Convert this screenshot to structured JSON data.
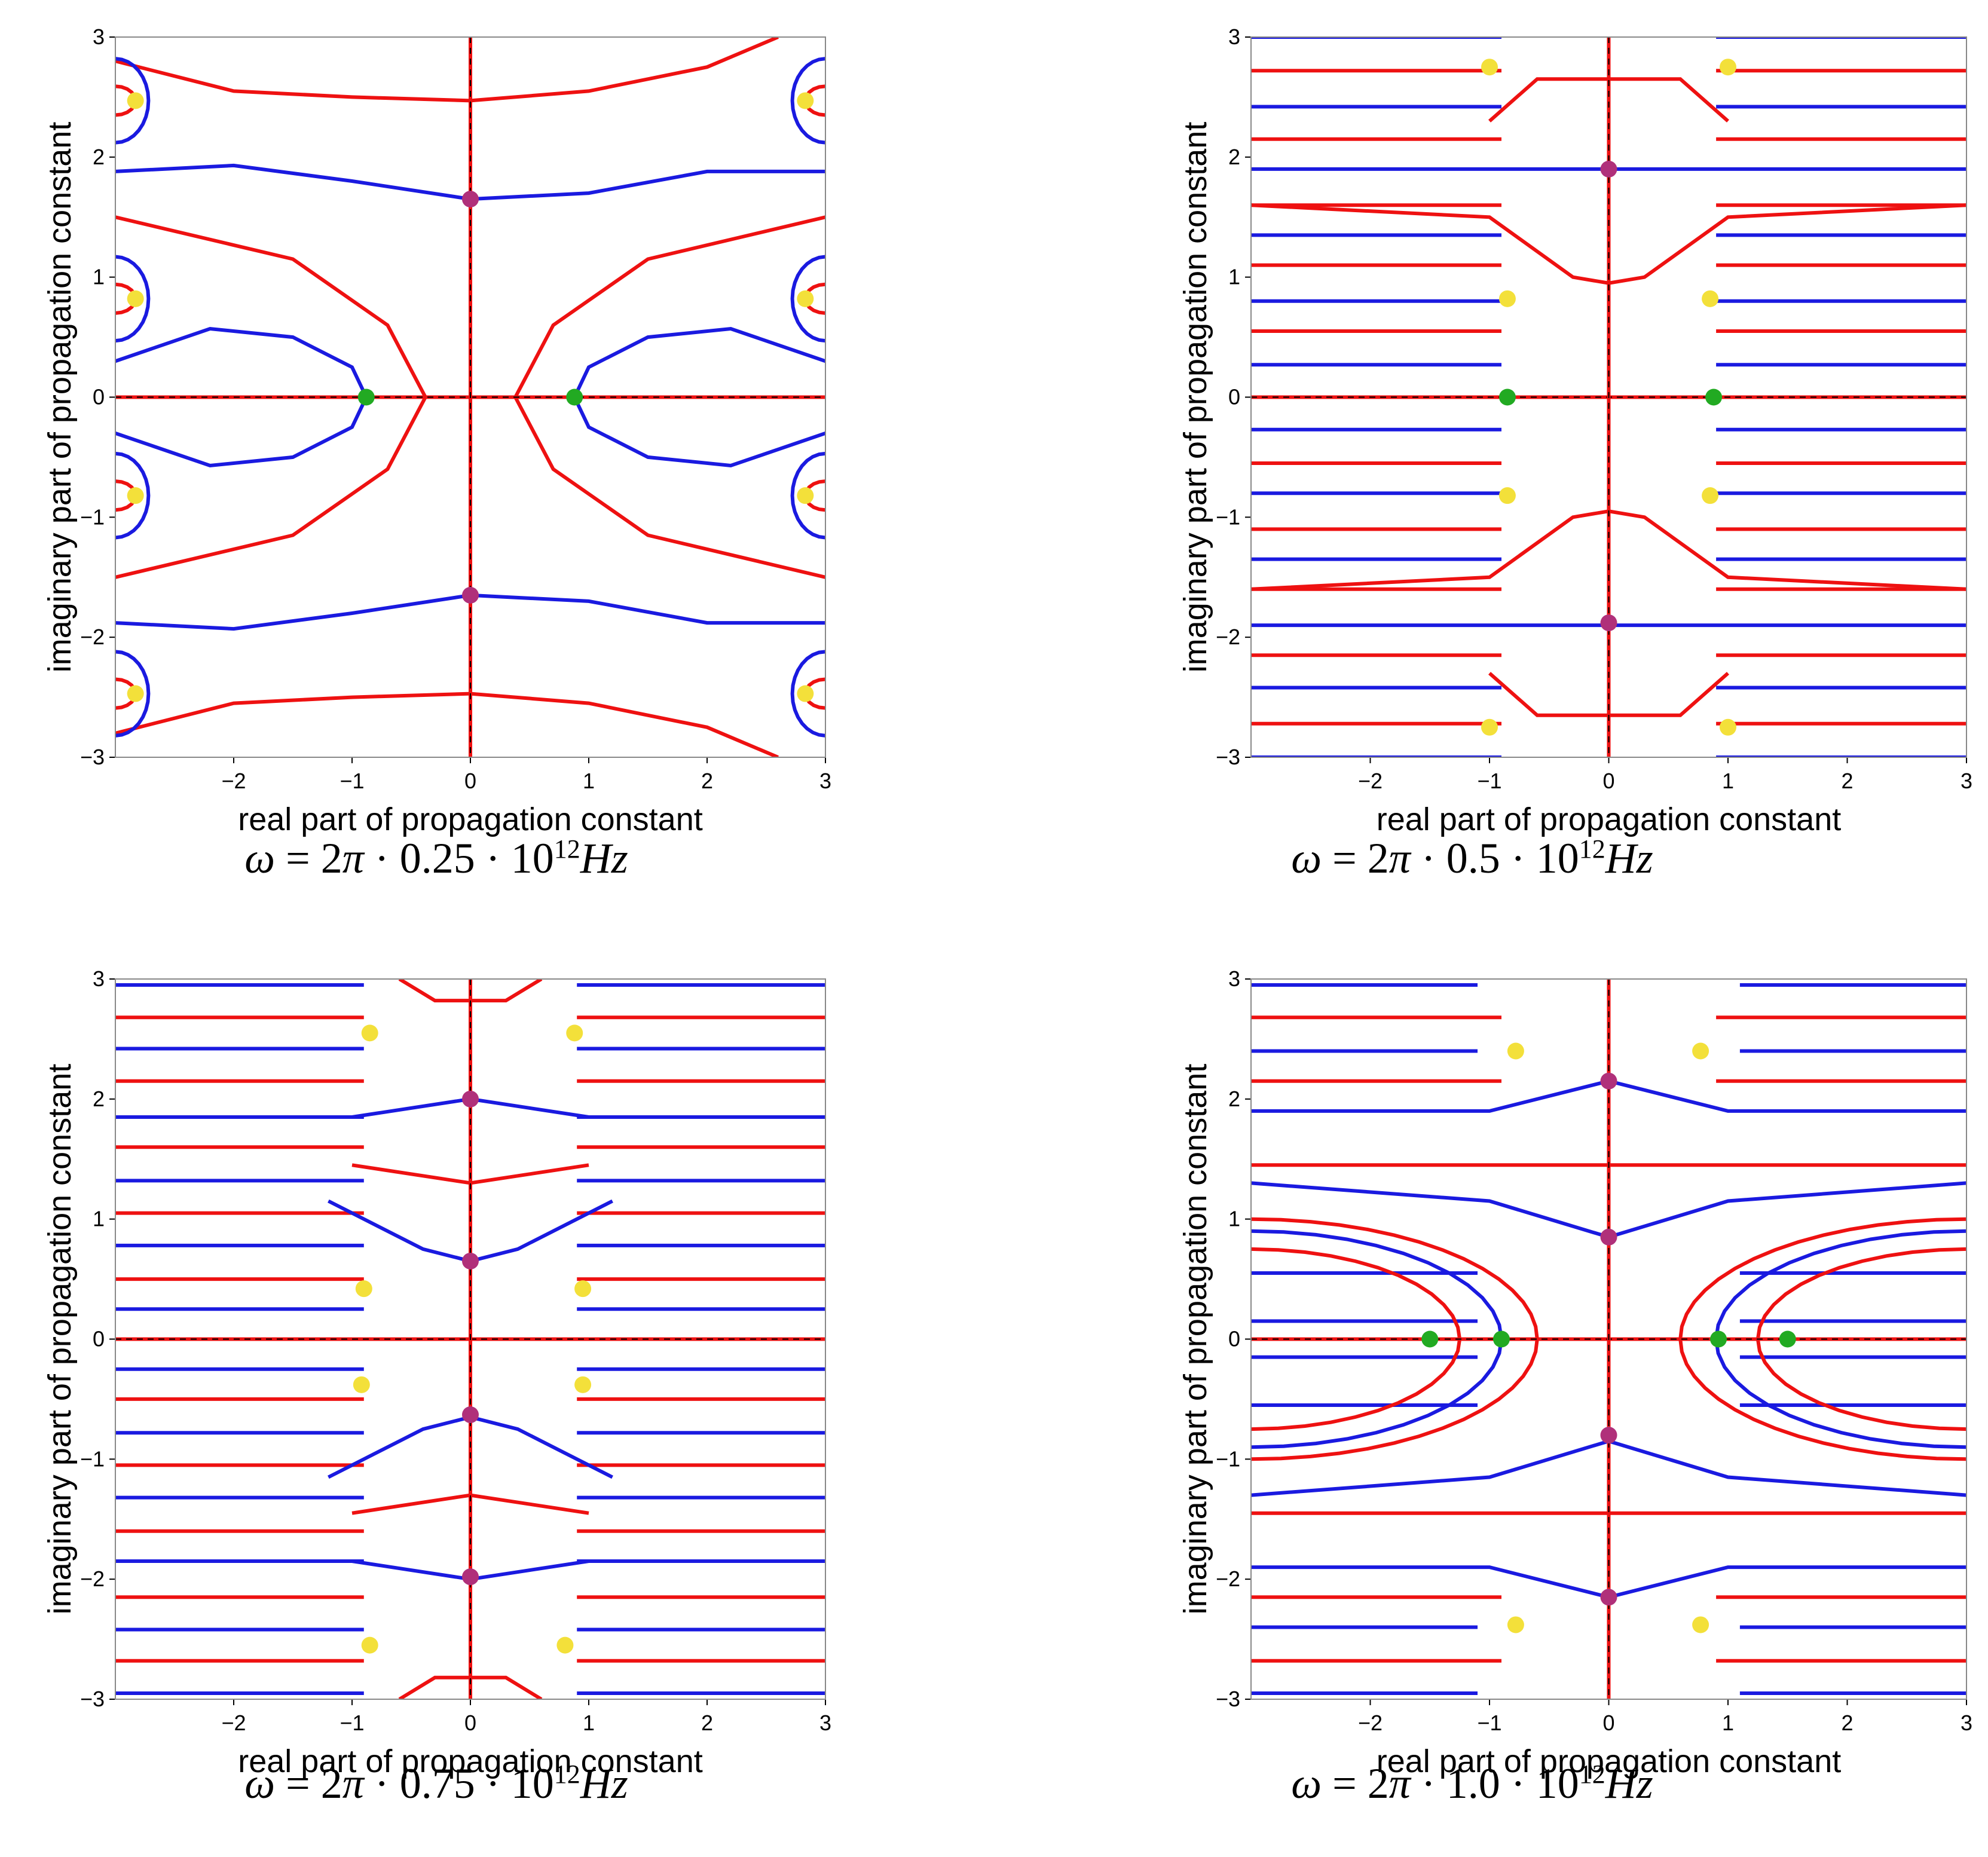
{
  "colors": {
    "red": "#ee1111",
    "blue": "#1a1ae0",
    "yellow": "#f3e03a",
    "green": "#22aa22",
    "magenta": "#b0307a"
  },
  "chart_data": [
    {
      "type": "scatter",
      "xlabel": "real part of propagation constant",
      "ylabel": "imaginary part of propagation constant",
      "xlim": [
        -3,
        3
      ],
      "ylim": [
        -3,
        3
      ],
      "xticks": [
        -2,
        -1,
        0,
        1,
        2,
        3
      ],
      "yticks": [
        -3,
        -2,
        -1,
        0,
        1,
        2,
        3
      ],
      "caption": {
        "omega": "ω",
        "eq": " = 2",
        "pi": "π",
        "factor": " · 0.25 · 10",
        "exp": "12",
        "unit": "Hz"
      },
      "points": {
        "yellow": [
          [
            -2.83,
            2.47
          ],
          [
            2.83,
            2.47
          ],
          [
            -2.83,
            0.82
          ],
          [
            2.83,
            0.82
          ],
          [
            -2.83,
            -0.82
          ],
          [
            2.83,
            -0.82
          ],
          [
            -2.83,
            -2.47
          ],
          [
            2.83,
            -2.47
          ]
        ],
        "green": [
          [
            -0.88,
            0
          ],
          [
            0.88,
            0
          ]
        ],
        "magenta": [
          [
            0,
            1.65
          ],
          [
            0,
            -1.65
          ]
        ]
      }
    },
    {
      "type": "scatter",
      "xlabel": "real part of propagation constant",
      "ylabel": "imaginary part of propagation constant",
      "xlim": [
        -3,
        3
      ],
      "ylim": [
        -3,
        3
      ],
      "xticks": [
        -2,
        -1,
        0,
        1,
        2,
        3
      ],
      "yticks": [
        -3,
        -2,
        -1,
        0,
        1,
        2,
        3
      ],
      "caption": {
        "omega": "ω",
        "eq": " = 2",
        "pi": "π",
        "factor": " · 0.5 · 10",
        "exp": "12",
        "unit": "Hz"
      },
      "points": {
        "yellow": [
          [
            -1.0,
            2.75
          ],
          [
            1.0,
            2.75
          ],
          [
            -0.85,
            0.82
          ],
          [
            0.85,
            0.82
          ],
          [
            -0.85,
            -0.82
          ],
          [
            0.85,
            -0.82
          ],
          [
            -1.0,
            -2.75
          ],
          [
            1.0,
            -2.75
          ]
        ],
        "green": [
          [
            -0.85,
            0
          ],
          [
            0.88,
            0
          ]
        ],
        "magenta": [
          [
            0,
            1.9
          ],
          [
            0,
            -1.88
          ]
        ]
      }
    },
    {
      "type": "scatter",
      "xlabel": "real part of propagation constant",
      "ylabel": "imaginary part of propagation constant",
      "xlim": [
        -3,
        3
      ],
      "ylim": [
        -3,
        3
      ],
      "xticks": [
        -2,
        -1,
        0,
        1,
        2,
        3
      ],
      "yticks": [
        -3,
        -2,
        -1,
        0,
        1,
        2,
        3
      ],
      "caption": {
        "omega": "ω",
        "eq": " = 2",
        "pi": "π",
        "factor": " · 0.75 · 10",
        "exp": "12",
        "unit": "Hz"
      },
      "points": {
        "yellow": [
          [
            -0.85,
            2.55
          ],
          [
            0.88,
            2.55
          ],
          [
            -0.9,
            0.42
          ],
          [
            0.95,
            0.42
          ],
          [
            -0.92,
            -0.38
          ],
          [
            0.95,
            -0.38
          ],
          [
            -0.85,
            -2.55
          ],
          [
            0.8,
            -2.55
          ]
        ],
        "green": [],
        "magenta": [
          [
            0,
            2.0
          ],
          [
            0,
            0.65
          ],
          [
            0,
            -0.63
          ],
          [
            0,
            -1.98
          ]
        ]
      }
    },
    {
      "type": "scatter",
      "xlabel": "real part of propagation constant",
      "ylabel": "imaginary part of propagation constant",
      "xlim": [
        -3,
        3
      ],
      "ylim": [
        -3,
        3
      ],
      "xticks": [
        -2,
        -1,
        0,
        1,
        2,
        3
      ],
      "yticks": [
        -3,
        -2,
        -1,
        0,
        1,
        2,
        3
      ],
      "caption": {
        "omega": "ω",
        "eq": " = 2",
        "pi": "π",
        "factor": " · 1.0 · 10",
        "exp": "12",
        "unit": "Hz"
      },
      "points": {
        "yellow": [
          [
            -0.78,
            2.4
          ],
          [
            0.77,
            2.4
          ],
          [
            -0.78,
            -2.38
          ],
          [
            0.77,
            -2.38
          ]
        ],
        "green": [
          [
            -1.5,
            0
          ],
          [
            -0.9,
            0
          ],
          [
            0.92,
            0
          ],
          [
            1.5,
            0
          ]
        ],
        "magenta": [
          [
            0,
            2.15
          ],
          [
            0,
            0.85
          ],
          [
            0,
            -0.8
          ],
          [
            0,
            -2.15
          ]
        ]
      }
    }
  ]
}
